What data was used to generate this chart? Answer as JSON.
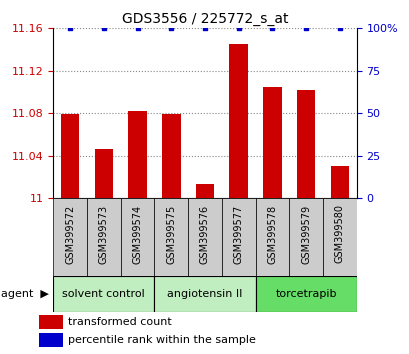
{
  "title": "GDS3556 / 225772_s_at",
  "samples": [
    "GSM399572",
    "GSM399573",
    "GSM399574",
    "GSM399575",
    "GSM399576",
    "GSM399577",
    "GSM399578",
    "GSM399579",
    "GSM399580"
  ],
  "transformed_count": [
    11.079,
    11.046,
    11.082,
    11.079,
    11.013,
    11.145,
    11.105,
    11.102,
    11.03
  ],
  "percentile_rank": [
    100,
    100,
    100,
    100,
    100,
    100,
    100,
    100,
    100
  ],
  "ylim_left": [
    11.0,
    11.16
  ],
  "ylim_right": [
    0,
    100
  ],
  "yticks_left": [
    11.0,
    11.04,
    11.08,
    11.12,
    11.16
  ],
  "ytick_labels_left": [
    "11",
    "11.04",
    "11.08",
    "11.12",
    "11.16"
  ],
  "yticks_right": [
    0,
    25,
    50,
    75,
    100
  ],
  "ytick_labels_right": [
    "0",
    "25",
    "50",
    "75",
    "100%"
  ],
  "groups": [
    {
      "label": "solvent control",
      "indices": [
        0,
        1,
        2
      ],
      "color": "#c0eec0"
    },
    {
      "label": "angiotensin II",
      "indices": [
        3,
        4,
        5
      ],
      "color": "#c0eec0"
    },
    {
      "label": "torcetrapib",
      "indices": [
        6,
        7,
        8
      ],
      "color": "#66dd66"
    }
  ],
  "bar_color": "#cc0000",
  "dot_color": "#0000cc",
  "bar_width": 0.55,
  "grid_color": "#888888",
  "agent_label": "agent",
  "legend_bar_label": "transformed count",
  "legend_dot_label": "percentile rank within the sample",
  "background_color": "#ffffff",
  "sample_box_color": "#cccccc",
  "tick_label_color_left": "#cc0000",
  "tick_label_color_right": "#0000cc",
  "title_fontsize": 10,
  "tick_fontsize": 8,
  "sample_fontsize": 7,
  "group_fontsize": 8,
  "legend_fontsize": 8
}
